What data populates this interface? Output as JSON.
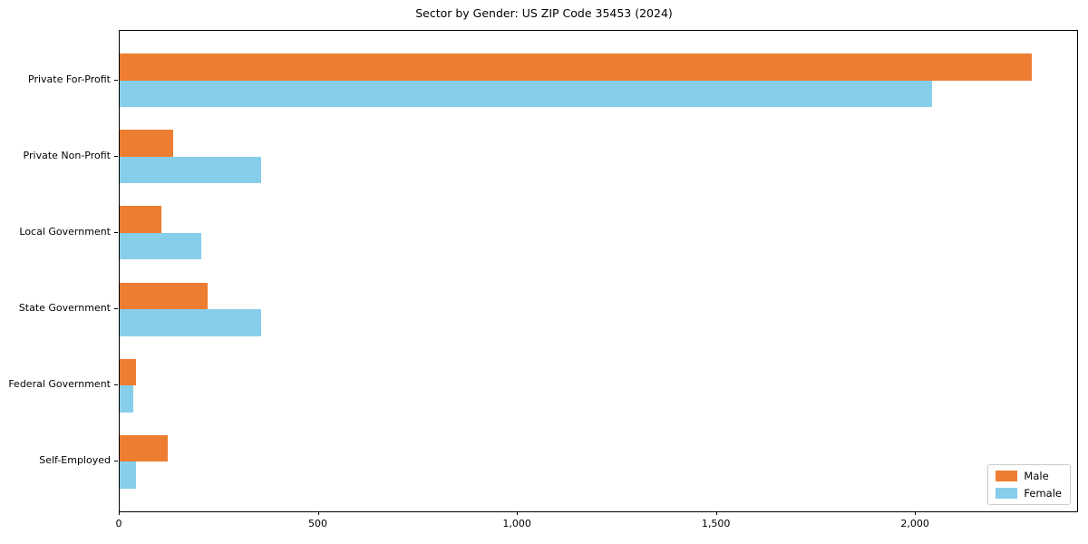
{
  "title": "Sector by Gender: US ZIP Code 35453 (2024)",
  "colors": {
    "male": "#ED7D31",
    "female": "#87CEEB",
    "axis": "#000000",
    "legend_border": "#cccccc",
    "background": "#ffffff"
  },
  "chart_data": {
    "type": "bar",
    "orientation": "horizontal",
    "title": "Sector by Gender: US ZIP Code 35453 (2024)",
    "xlabel": "",
    "ylabel": "",
    "categories": [
      "Private For-Profit",
      "Private Non-Profit",
      "Local Government",
      "State Government",
      "Federal Government",
      "Self-Employed"
    ],
    "series": [
      {
        "name": "Male",
        "color": "#ED7D31",
        "values": [
          2290,
          135,
          105,
          220,
          40,
          120
        ]
      },
      {
        "name": "Female",
        "color": "#87CEEB",
        "values": [
          2040,
          355,
          205,
          355,
          35,
          40
        ]
      }
    ],
    "xlim": [
      0,
      2405
    ],
    "xticks": [
      0,
      500,
      1000,
      1500,
      2000
    ],
    "xtick_labels": [
      "0",
      "500",
      "1,000",
      "1,500",
      "2,000"
    ],
    "grid": false,
    "legend_position": "lower right",
    "legend_entries": [
      "Male",
      "Female"
    ]
  }
}
